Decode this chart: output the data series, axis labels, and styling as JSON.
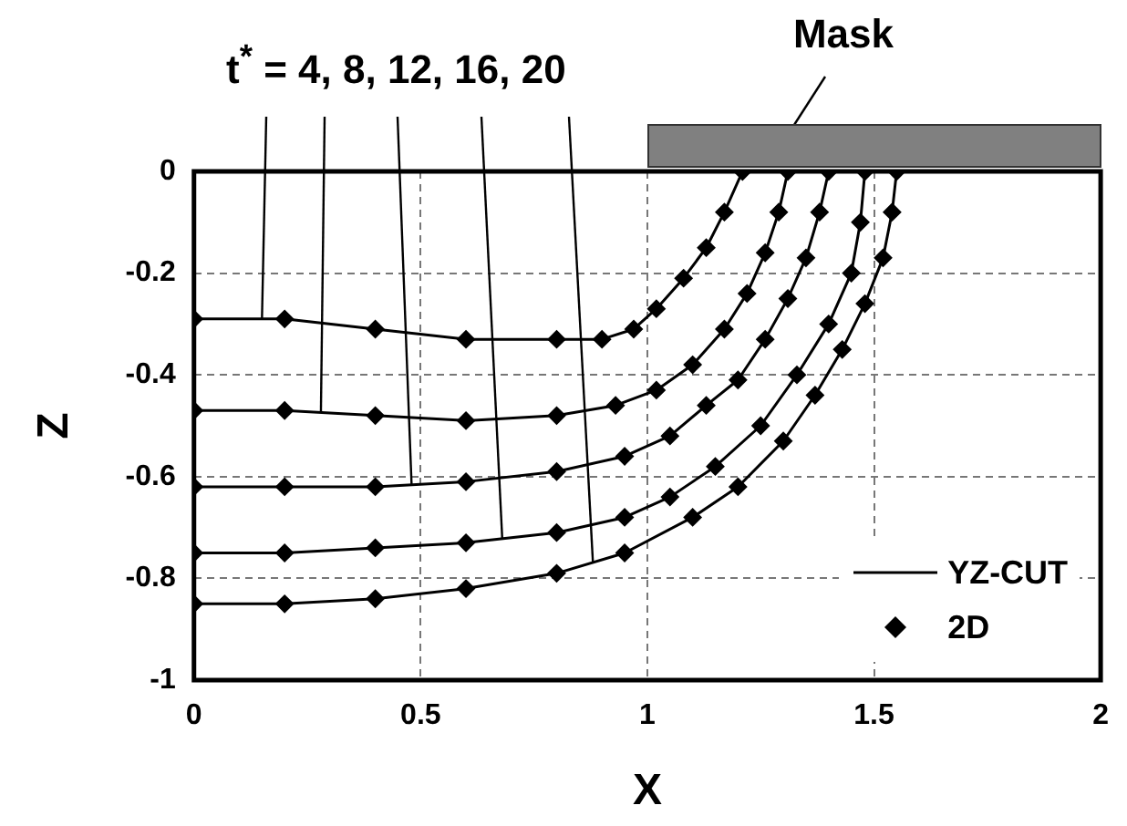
{
  "chart_data": {
    "type": "line",
    "xlabel": "X",
    "ylabel": "Z",
    "annotations": [
      {
        "text": "t$^{*}$ = 4, 8, 12, 16, 20",
        "x": 0.15,
        "y": -0.29
      },
      "Mask"
    ],
    "xlim": [
      0,
      2
    ],
    "xticks": [
      0,
      0.5,
      1,
      1.5,
      2
    ],
    "ylim": [
      -1,
      0
    ],
    "yticks": [
      -1,
      -0.8,
      -0.6,
      -0.4,
      -0.2,
      0
    ],
    "grid": true,
    "legend": "bottom right",
    "series": [
      {
        "name": "YZ-CUT",
        "type": "line",
        "marker": "none",
        "color": "#000000",
        "x": [
          0,
          0.2,
          0.4,
          0.6,
          0.8,
          0.9,
          0.97,
          1.02,
          1.08,
          1.13,
          1.17,
          1.21
        ],
        "values": [
          -0.29,
          -0.29,
          -0.31,
          -0.33,
          -0.33,
          -0.33,
          -0.31,
          -0.27,
          -0.21,
          -0.15,
          -0.08,
          0
        ]
      },
      {
        "type": "line",
        "marker": "none",
        "color": "#000000",
        "x": [
          0,
          0.2,
          0.4,
          0.6,
          0.8,
          0.93,
          1.02,
          1.1,
          1.17,
          1.22,
          1.26,
          1.29,
          1.31
        ],
        "values": [
          -0.47,
          -0.47,
          -0.48,
          -0.49,
          -0.48,
          -0.46,
          -0.43,
          -0.38,
          -0.31,
          -0.24,
          -0.16,
          -0.08,
          0
        ]
      },
      {
        "type": "line",
        "marker": "none",
        "color": "#000000",
        "x": [
          0,
          0.2,
          0.4,
          0.6,
          0.8,
          0.95,
          1.05,
          1.13,
          1.2,
          1.26,
          1.31,
          1.35,
          1.38,
          1.4
        ],
        "values": [
          -0.62,
          -0.62,
          -0.62,
          -0.61,
          -0.59,
          -0.56,
          -0.52,
          -0.46,
          -0.41,
          -0.33,
          -0.25,
          -0.17,
          -0.08,
          0
        ]
      },
      {
        "type": "line",
        "marker": "none",
        "color": "#000000",
        "x": [
          0,
          0.2,
          0.4,
          0.6,
          0.8,
          0.95,
          1.05,
          1.15,
          1.25,
          1.33,
          1.4,
          1.45,
          1.47,
          1.48
        ],
        "values": [
          -0.75,
          -0.75,
          -0.74,
          -0.73,
          -0.71,
          -0.68,
          -0.64,
          -0.58,
          -0.5,
          -0.4,
          -0.3,
          -0.2,
          -0.1,
          0
        ]
      },
      {
        "type": "line",
        "marker": "none",
        "color": "#000000",
        "x": [
          0,
          0.2,
          0.4,
          0.6,
          0.8,
          0.95,
          1.1,
          1.2,
          1.3,
          1.37,
          1.43,
          1.48,
          1.52,
          1.54,
          1.55
        ],
        "values": [
          -0.85,
          -0.85,
          -0.84,
          -0.82,
          -0.79,
          -0.75,
          -0.68,
          -0.62,
          -0.53,
          -0.44,
          -0.35,
          -0.26,
          -0.17,
          -0.08,
          0
        ]
      },
      {
        "name": "2D",
        "type": "scatter",
        "marker": "diamond",
        "color": "#000000",
        "x": [
          0,
          0.2,
          0.4,
          0.6,
          0.8,
          0.9,
          0.97,
          1.02,
          1.08,
          1.13,
          1.17,
          1.21
        ],
        "values": [
          -0.29,
          -0.29,
          -0.31,
          -0.33,
          -0.33,
          -0.33,
          -0.31,
          -0.27,
          -0.21,
          -0.15,
          -0.08,
          0
        ]
      },
      {
        "type": "scatter",
        "marker": "diamond",
        "color": "#000000",
        "x": [
          0,
          0.2,
          0.4,
          0.6,
          0.8,
          0.93,
          1.02,
          1.1,
          1.17,
          1.22,
          1.26,
          1.29,
          1.31
        ],
        "values": [
          -0.47,
          -0.47,
          -0.48,
          -0.49,
          -0.48,
          -0.46,
          -0.43,
          -0.38,
          -0.31,
          -0.24,
          -0.16,
          -0.08,
          0
        ]
      },
      {
        "type": "scatter",
        "marker": "diamond",
        "color": "#000000",
        "x": [
          0,
          0.2,
          0.4,
          0.6,
          0.8,
          0.95,
          1.05,
          1.13,
          1.2,
          1.26,
          1.31,
          1.35,
          1.38,
          1.4
        ],
        "values": [
          -0.62,
          -0.62,
          -0.62,
          -0.61,
          -0.59,
          -0.56,
          -0.52,
          -0.46,
          -0.41,
          -0.33,
          -0.25,
          -0.17,
          -0.08,
          0
        ]
      },
      {
        "type": "scatter",
        "marker": "diamond",
        "color": "#000000",
        "x": [
          0,
          0.2,
          0.4,
          0.6,
          0.8,
          0.95,
          1.05,
          1.15,
          1.25,
          1.33,
          1.4,
          1.45,
          1.47,
          1.48
        ],
        "values": [
          -0.75,
          -0.75,
          -0.74,
          -0.73,
          -0.71,
          -0.68,
          -0.64,
          -0.58,
          -0.5,
          -0.4,
          -0.3,
          -0.2,
          -0.1,
          0
        ]
      },
      {
        "type": "scatter",
        "marker": "diamond",
        "color": "#000000",
        "x": [
          0,
          0.2,
          0.4,
          0.6,
          0.8,
          0.95,
          1.1,
          1.2,
          1.3,
          1.37,
          1.43,
          1.48,
          1.52,
          1.54,
          1.55
        ],
        "values": [
          -0.85,
          -0.85,
          -0.84,
          -0.82,
          -0.79,
          -0.75,
          -0.68,
          -0.62,
          -0.53,
          -0.44,
          -0.35,
          -0.26,
          -0.17,
          -0.08,
          0
        ]
      }
    ]
  }
}
